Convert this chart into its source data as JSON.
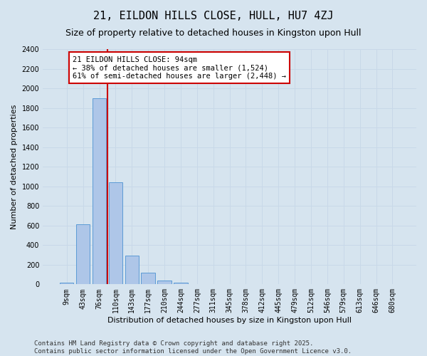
{
  "title": "21, EILDON HILLS CLOSE, HULL, HU7 4ZJ",
  "subtitle": "Size of property relative to detached houses in Kingston upon Hull",
  "xlabel": "Distribution of detached houses by size in Kingston upon Hull",
  "ylabel": "Number of detached properties",
  "categories": [
    "9sqm",
    "43sqm",
    "76sqm",
    "110sqm",
    "143sqm",
    "177sqm",
    "210sqm",
    "244sqm",
    "277sqm",
    "311sqm",
    "345sqm",
    "378sqm",
    "412sqm",
    "445sqm",
    "479sqm",
    "512sqm",
    "546sqm",
    "579sqm",
    "613sqm",
    "646sqm",
    "680sqm"
  ],
  "values": [
    15,
    610,
    1900,
    1040,
    295,
    120,
    42,
    18,
    0,
    0,
    0,
    0,
    0,
    0,
    0,
    0,
    0,
    0,
    0,
    0,
    0
  ],
  "bar_color": "#aec6e8",
  "bar_edge_color": "#5b9bd5",
  "vline_x_index": 2,
  "vline_color": "#cc0000",
  "annotation_text": "21 EILDON HILLS CLOSE: 94sqm\n← 38% of detached houses are smaller (1,524)\n61% of semi-detached houses are larger (2,448) →",
  "annotation_box_color": "#ffffff",
  "annotation_box_edgecolor": "#cc0000",
  "ylim": [
    0,
    2400
  ],
  "yticks": [
    0,
    200,
    400,
    600,
    800,
    1000,
    1200,
    1400,
    1600,
    1800,
    2000,
    2200,
    2400
  ],
  "grid_color": "#c8d8e8",
  "background_color": "#d6e4ef",
  "footer_text": "Contains HM Land Registry data © Crown copyright and database right 2025.\nContains public sector information licensed under the Open Government Licence v3.0.",
  "title_fontsize": 11,
  "subtitle_fontsize": 9,
  "axis_label_fontsize": 8,
  "tick_fontsize": 7,
  "annotation_fontsize": 7.5,
  "footer_fontsize": 6.5
}
